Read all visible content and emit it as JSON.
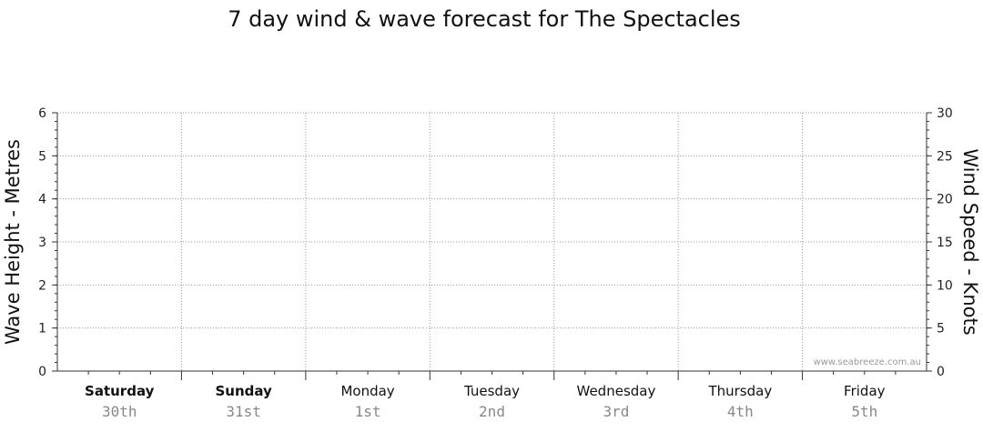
{
  "chart_data": {
    "type": "line",
    "title": "7 day wind & wave forecast for The Spectacles",
    "ylabel_left": "Wave Height - Metres",
    "ylabel_right": "Wind Speed - Knots",
    "ylim_left": [
      0,
      6
    ],
    "ylim_right": [
      0,
      30
    ],
    "yticks_left": [
      0,
      1,
      2,
      3,
      4,
      5,
      6
    ],
    "yticks_right": [
      0,
      5,
      10,
      15,
      20,
      25,
      30
    ],
    "grid": true,
    "days": [
      {
        "name": "Saturday",
        "date": "30th",
        "bold": true
      },
      {
        "name": "Sunday",
        "date": "31st",
        "bold": true
      },
      {
        "name": "Monday",
        "date": "1st",
        "bold": false
      },
      {
        "name": "Tuesday",
        "date": "2nd",
        "bold": false
      },
      {
        "name": "Wednesday",
        "date": "3rd",
        "bold": false
      },
      {
        "name": "Thursday",
        "date": "4th",
        "bold": false
      },
      {
        "name": "Friday",
        "date": "5th",
        "bold": false
      }
    ],
    "series": [],
    "watermark": "www.seabreeze.com.au"
  }
}
